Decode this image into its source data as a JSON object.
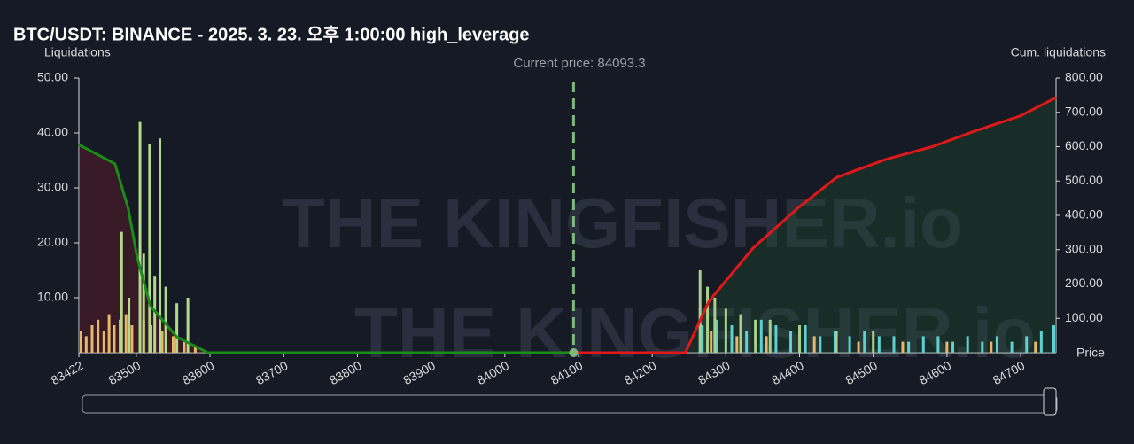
{
  "chart_data": {
    "type": "bar",
    "title": "BTC/USDT: BINANCE - 2025. 3. 23. 오후 1:00:00 high_leverage",
    "ylabel": "Liquidations",
    "y2label": "Cum. liquidations",
    "xlabel": "Price",
    "watermark": "THE KINGFISHER.io",
    "annotation": "Current price: 84093.3",
    "current_price": 84093.3,
    "xlim": [
      83422,
      84748
    ],
    "xticks": [
      83422,
      83500,
      83600,
      83700,
      83800,
      83900,
      84000,
      84100,
      84200,
      84300,
      84400,
      84500,
      84600,
      84700
    ],
    "ylim": [
      0,
      50
    ],
    "yticks": [
      {
        "value": 10,
        "label": "10.00"
      },
      {
        "value": 20,
        "label": "20.00"
      },
      {
        "value": 30,
        "label": "30.00"
      },
      {
        "value": 40,
        "label": "40.00"
      },
      {
        "value": 50,
        "label": "50.00"
      }
    ],
    "y2lim": [
      0,
      800
    ],
    "y2ticks": [
      {
        "value": 100,
        "label": "100.00"
      },
      {
        "value": 200,
        "label": "200.00"
      },
      {
        "value": 300,
        "label": "300.00"
      },
      {
        "value": 400,
        "label": "400.00"
      },
      {
        "value": 500,
        "label": "500.00"
      },
      {
        "value": 600,
        "label": "600.00"
      },
      {
        "value": 700,
        "label": "700.00"
      },
      {
        "value": 800,
        "label": "800.00"
      }
    ],
    "series": [
      {
        "type": "line",
        "axis": "y2",
        "color": "#1a8c1a",
        "area_color": "rgba(120,30,40,0.35)",
        "x": [
          83422,
          83471,
          83489,
          83501,
          83519,
          83555,
          83597,
          84093.3
        ],
        "values": [
          606,
          550,
          420,
          279,
          137,
          46,
          0,
          0
        ]
      },
      {
        "type": "line",
        "axis": "y2",
        "color": "#e01818",
        "area_color": "rgba(30,90,50,0.3)",
        "x": [
          84093.3,
          84245,
          84277,
          84337,
          84397,
          84450,
          84517,
          84580,
          84637,
          84700,
          84748
        ],
        "values": [
          0,
          0,
          150,
          305,
          420,
          510,
          563,
          600,
          645,
          690,
          743
        ]
      },
      {
        "type": "bar",
        "color": "#e8b86a",
        "x": [
          83425,
          83432,
          83440,
          83448,
          83456,
          83463,
          83470,
          83478,
          83486,
          83494,
          83510,
          83520,
          83535,
          83550,
          83565,
          83580
        ],
        "values": [
          4,
          3,
          5,
          6,
          4,
          7,
          5,
          6,
          7,
          5,
          6,
          5,
          4,
          3,
          2,
          1
        ]
      },
      {
        "type": "bar",
        "color": "#b5d98a",
        "x": [
          83480,
          83490,
          83505,
          83510,
          83518,
          83525,
          83532,
          83540,
          83555,
          83570
        ],
        "values": [
          22,
          10,
          42,
          18,
          38,
          14,
          39,
          12,
          9,
          10
        ]
      },
      {
        "type": "bar",
        "color": "#5fd0d0",
        "x": [
          84268,
          84288,
          84308,
          84328,
          84348,
          84368,
          84388,
          84408,
          84428,
          84448,
          84468,
          84488,
          84508,
          84528,
          84548,
          84568,
          84588,
          84608,
          84628,
          84648,
          84668,
          84688,
          84708,
          84728,
          84745
        ],
        "values": [
          5,
          6,
          5,
          4,
          6,
          5,
          4,
          5,
          3,
          4,
          3,
          4,
          3,
          3,
          2,
          3,
          3,
          2,
          3,
          2,
          3,
          2,
          3,
          4,
          5
        ]
      },
      {
        "type": "bar",
        "color": "#a8d08a",
        "x": [
          84265,
          84275,
          84285,
          84300,
          84320,
          84340,
          84360,
          84400,
          84450,
          84500
        ],
        "values": [
          15,
          12,
          10,
          8,
          7,
          6,
          6,
          5,
          4,
          4
        ]
      },
      {
        "type": "bar",
        "color": "#e8b86a",
        "x": [
          84280,
          84315,
          84355,
          84420,
          84480,
          84540,
          84600,
          84660,
          84720
        ],
        "values": [
          4,
          3,
          3,
          3,
          2,
          2,
          2,
          2,
          2
        ]
      }
    ]
  }
}
